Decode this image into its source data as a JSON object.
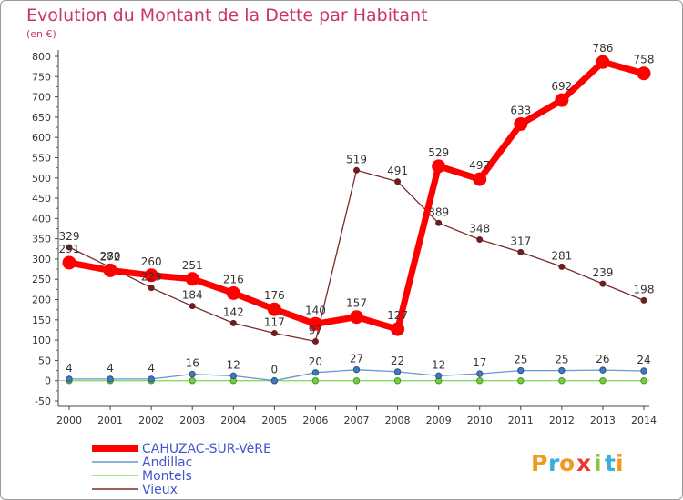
{
  "chart_data": {
    "type": "line",
    "title": "Evolution du Montant de la Dette par Habitant",
    "subtitle": "(en €)",
    "x": [
      2000,
      2001,
      2002,
      2003,
      2004,
      2005,
      2006,
      2007,
      2008,
      2009,
      2010,
      2011,
      2012,
      2013,
      2014
    ],
    "ylim": [
      -50,
      800
    ],
    "yticks": [
      -50,
      0,
      50,
      100,
      150,
      200,
      250,
      300,
      350,
      400,
      450,
      500,
      550,
      600,
      650,
      700,
      750,
      800
    ],
    "grid": false,
    "legend_position": "bottom-left",
    "series": [
      {
        "name": "Vieux",
        "color": "#7a2a2a",
        "values": [
          329,
          280,
          229,
          184,
          142,
          117,
          97,
          519,
          491,
          389,
          348,
          317,
          281,
          239,
          198
        ],
        "labels": [
          "329",
          "280",
          "229",
          "184",
          "142",
          "117",
          "97",
          "519",
          "491",
          "389",
          "348",
          "317",
          "281",
          "239",
          "198"
        ]
      },
      {
        "name": "Montels",
        "color": "#88dd66",
        "values": [
          0,
          0,
          0,
          0,
          0,
          0,
          0,
          0,
          0,
          0,
          0,
          0,
          0,
          0,
          0
        ],
        "labels": []
      },
      {
        "name": "Andillac",
        "color": "#6699cc",
        "values": [
          4,
          4,
          4,
          16,
          12,
          0,
          20,
          27,
          22,
          12,
          17,
          25,
          25,
          26,
          24
        ],
        "labels": [
          "4",
          "4",
          "4",
          "16",
          "12",
          "0",
          "20",
          "27",
          "22",
          "12",
          "17",
          "25",
          "25",
          "26",
          "24"
        ]
      },
      {
        "name": "CAHUZAC-SUR-VèRE",
        "color": "#ff0000",
        "values": [
          291,
          272,
          260,
          251,
          216,
          176,
          140,
          157,
          127,
          529,
          497,
          633,
          692,
          786,
          758
        ],
        "labels": [
          "291",
          "272",
          "260",
          "251",
          "216",
          "176",
          "140",
          "157",
          "127",
          "529",
          "497",
          "633",
          "692",
          "786",
          "758"
        ]
      }
    ],
    "legend": [
      "CAHUZAC-SUR-VèRE",
      "Andillac",
      "Montels",
      "Vieux"
    ]
  },
  "brand": {
    "letters": [
      "P",
      "r",
      "o",
      "x",
      "i",
      "t",
      "i"
    ],
    "colors": [
      "#f39a1e",
      "#3aaee0",
      "#f39a1e",
      "#e8392c",
      "#8cc63f",
      "#3aaee0",
      "#f39a1e"
    ]
  }
}
